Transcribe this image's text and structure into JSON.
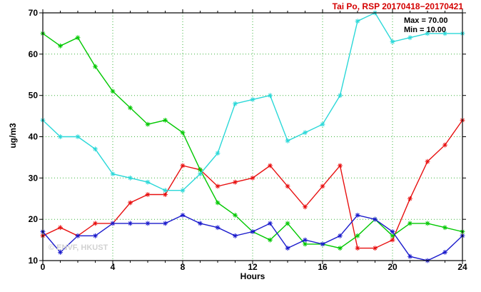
{
  "chart_data": {
    "type": "line",
    "title": "Tai Po, RSP 20170418−20170421",
    "xlabel": "Hours",
    "ylabel": "ug/m3",
    "xlim": [
      0,
      24
    ],
    "ylim": [
      10,
      70
    ],
    "x_major_ticks": [
      0,
      4,
      8,
      12,
      16,
      20,
      24
    ],
    "y_major_ticks": [
      10,
      20,
      30,
      40,
      50,
      60,
      70
    ],
    "x_minor_step": 1,
    "grid": true,
    "legend": "none",
    "annotations": {
      "max": "Max = 70.00",
      "min": "Min = 10.00"
    },
    "watermark": "© ENVF, HKUST",
    "x": [
      0,
      1,
      2,
      3,
      4,
      5,
      6,
      7,
      8,
      9,
      10,
      11,
      12,
      13,
      14,
      15,
      16,
      17,
      18,
      19,
      20,
      21,
      22,
      23,
      24
    ],
    "series": [
      {
        "name": "red",
        "color": "#e81010",
        "values": [
          16,
          18,
          16,
          19,
          19,
          24,
          26,
          26,
          33,
          32,
          28,
          29,
          30,
          33,
          28,
          23,
          28,
          33,
          13,
          13,
          15,
          25,
          34,
          38,
          44
        ]
      },
      {
        "name": "green",
        "color": "#00c800",
        "values": [
          65,
          62,
          64,
          57,
          51,
          47,
          43,
          44,
          41,
          32,
          24,
          21,
          17,
          15,
          19,
          14,
          14,
          13,
          16,
          20,
          16,
          19,
          19,
          18,
          17
        ]
      },
      {
        "name": "cyan",
        "color": "#2ad8d8",
        "values": [
          44,
          40,
          40,
          37,
          31,
          30,
          29,
          27,
          27,
          31,
          36,
          48,
          49,
          50,
          39,
          41,
          43,
          50,
          68,
          70,
          63,
          64,
          65,
          65,
          65
        ]
      },
      {
        "name": "blue",
        "color": "#1a1acc",
        "values": [
          17,
          12,
          16,
          16,
          19,
          19,
          19,
          19,
          21,
          19,
          18,
          16,
          17,
          19,
          13,
          15,
          14,
          16,
          21,
          20,
          17,
          11,
          10,
          12,
          16
        ]
      }
    ]
  }
}
